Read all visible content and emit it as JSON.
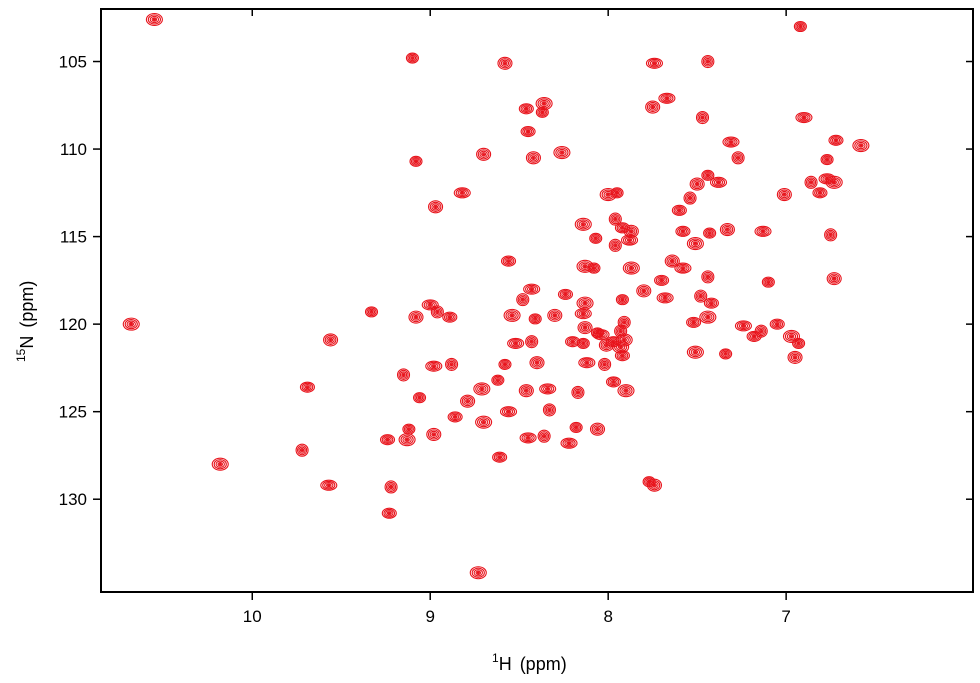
{
  "chart_data": {
    "type": "scatter",
    "title": "",
    "xlabel": {
      "superscript": "1",
      "nucleus": "H",
      "unit": "(ppm)"
    },
    "ylabel": {
      "superscript": "15",
      "nucleus": "N",
      "unit": "(ppm)"
    },
    "xlim": [
      10.85,
      5.95
    ],
    "ylim": [
      135.3,
      102.0
    ],
    "x_reversed": true,
    "y_reversed": true,
    "x_ticks": [
      10,
      9,
      8,
      7
    ],
    "x_tick_labels": [
      "10",
      "9",
      "8",
      "7"
    ],
    "y_ticks": [
      105,
      110,
      115,
      120,
      125,
      130
    ],
    "y_tick_labels": [
      "105",
      "110",
      "115",
      "120",
      "125",
      "130"
    ],
    "grid": false,
    "legend": "none",
    "series": [
      {
        "color": "#e8141c",
        "points": [
          [
            6.92,
            103.0
          ],
          [
            8.58,
            105.1
          ],
          [
            7.74,
            105.1
          ],
          [
            7.44,
            105.0
          ],
          [
            8.46,
            107.7
          ],
          [
            8.36,
            107.4
          ],
          [
            8.37,
            107.9
          ],
          [
            7.75,
            107.6
          ],
          [
            7.67,
            107.1
          ],
          [
            7.47,
            108.2
          ],
          [
            8.45,
            109.0
          ],
          [
            8.26,
            110.2
          ],
          [
            9.08,
            110.7
          ],
          [
            8.7,
            110.3
          ],
          [
            7.31,
            109.6
          ],
          [
            7.27,
            110.5
          ],
          [
            6.72,
            109.5
          ],
          [
            6.58,
            109.8
          ],
          [
            6.77,
            110.6
          ],
          [
            7.01,
            112.6
          ],
          [
            6.77,
            111.7
          ],
          [
            6.86,
            111.9
          ],
          [
            6.81,
            112.5
          ],
          [
            6.73,
            111.9
          ],
          [
            7.44,
            111.5
          ],
          [
            7.5,
            112.0
          ],
          [
            7.38,
            111.9
          ],
          [
            7.54,
            112.8
          ],
          [
            7.6,
            113.5
          ],
          [
            8.0,
            112.6
          ],
          [
            7.95,
            112.5
          ],
          [
            8.97,
            113.3
          ],
          [
            8.82,
            112.5
          ],
          [
            7.96,
            114.0
          ],
          [
            7.92,
            114.5
          ],
          [
            8.14,
            114.3
          ],
          [
            8.07,
            115.1
          ],
          [
            7.87,
            114.7
          ],
          [
            7.88,
            115.2
          ],
          [
            7.96,
            115.5
          ],
          [
            7.58,
            114.7
          ],
          [
            7.51,
            115.4
          ],
          [
            7.43,
            114.8
          ],
          [
            7.33,
            114.6
          ],
          [
            7.13,
            114.7
          ],
          [
            6.75,
            114.9
          ],
          [
            8.56,
            116.4
          ],
          [
            8.13,
            116.7
          ],
          [
            8.08,
            116.8
          ],
          [
            7.64,
            116.4
          ],
          [
            7.58,
            116.8
          ],
          [
            7.44,
            117.3
          ],
          [
            7.7,
            117.5
          ],
          [
            7.87,
            116.8
          ],
          [
            7.1,
            117.6
          ],
          [
            6.73,
            117.4
          ],
          [
            8.43,
            118.0
          ],
          [
            8.48,
            118.6
          ],
          [
            8.24,
            118.3
          ],
          [
            8.13,
            118.8
          ],
          [
            7.92,
            118.6
          ],
          [
            7.8,
            118.1
          ],
          [
            7.68,
            118.5
          ],
          [
            7.48,
            118.4
          ],
          [
            7.42,
            118.8
          ],
          [
            8.54,
            119.5
          ],
          [
            8.41,
            119.7
          ],
          [
            8.3,
            119.5
          ],
          [
            8.14,
            119.4
          ],
          [
            7.91,
            119.9
          ],
          [
            7.52,
            119.9
          ],
          [
            7.44,
            119.6
          ],
          [
            9.33,
            119.3
          ],
          [
            9.08,
            119.6
          ],
          [
            9.0,
            118.9
          ],
          [
            8.96,
            119.3
          ],
          [
            8.89,
            119.6
          ],
          [
            10.68,
            120.0
          ],
          [
            8.06,
            120.5
          ],
          [
            8.13,
            120.2
          ],
          [
            8.04,
            120.6
          ],
          [
            7.93,
            120.4
          ],
          [
            7.97,
            121.0
          ],
          [
            7.91,
            120.9
          ],
          [
            8.14,
            121.1
          ],
          [
            8.01,
            121.2
          ],
          [
            7.24,
            120.1
          ],
          [
            7.14,
            120.4
          ],
          [
            7.05,
            120.0
          ],
          [
            6.97,
            120.7
          ],
          [
            6.93,
            121.1
          ],
          [
            9.56,
            120.9
          ],
          [
            8.52,
            121.1
          ],
          [
            8.43,
            121.0
          ],
          [
            8.2,
            121.0
          ],
          [
            7.93,
            121.3
          ],
          [
            8.58,
            122.3
          ],
          [
            8.4,
            122.2
          ],
          [
            8.12,
            122.2
          ],
          [
            8.02,
            122.3
          ],
          [
            7.92,
            121.8
          ],
          [
            7.51,
            121.6
          ],
          [
            7.34,
            121.7
          ],
          [
            6.95,
            121.9
          ],
          [
            8.98,
            122.4
          ],
          [
            8.88,
            122.3
          ],
          [
            9.69,
            123.6
          ],
          [
            8.71,
            123.7
          ],
          [
            8.62,
            123.2
          ],
          [
            8.46,
            123.8
          ],
          [
            8.34,
            123.7
          ],
          [
            8.17,
            123.9
          ],
          [
            7.97,
            123.3
          ],
          [
            7.9,
            123.8
          ],
          [
            9.06,
            124.2
          ],
          [
            8.79,
            124.4
          ],
          [
            8.56,
            125.0
          ],
          [
            8.33,
            124.9
          ],
          [
            8.86,
            125.3
          ],
          [
            8.7,
            125.6
          ],
          [
            8.18,
            125.9
          ],
          [
            8.06,
            126.0
          ],
          [
            8.45,
            126.5
          ],
          [
            8.36,
            126.4
          ],
          [
            9.24,
            126.6
          ],
          [
            9.13,
            126.6
          ],
          [
            9.12,
            126.0
          ],
          [
            8.98,
            126.3
          ],
          [
            8.22,
            126.8
          ],
          [
            9.72,
            127.2
          ],
          [
            8.61,
            127.6
          ],
          [
            10.18,
            128.0
          ],
          [
            7.77,
            129.0
          ],
          [
            7.74,
            129.2
          ],
          [
            9.57,
            129.2
          ],
          [
            9.22,
            129.3
          ],
          [
            9.23,
            130.8
          ],
          [
            10.55,
            102.6
          ],
          [
            9.1,
            104.8
          ],
          [
            8.42,
            110.5
          ],
          [
            6.9,
            108.2
          ],
          [
            9.15,
            122.9
          ],
          [
            7.18,
            120.7
          ],
          [
            8.73,
            134.2
          ]
        ]
      }
    ]
  }
}
